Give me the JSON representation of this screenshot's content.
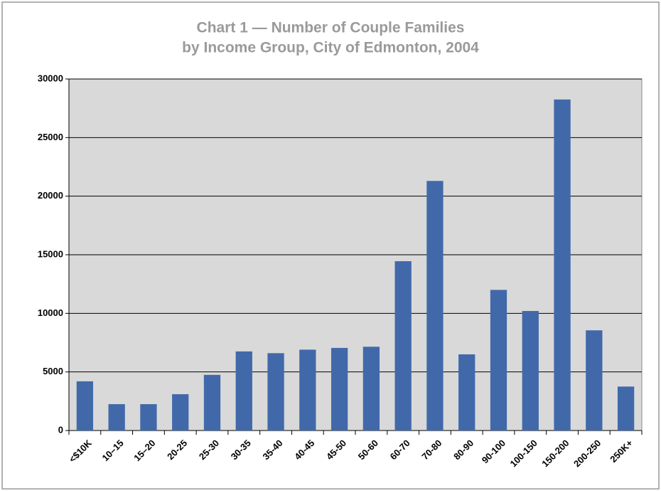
{
  "chart_data": {
    "type": "bar",
    "title": [
      "Chart 1 — Number of Couple Families",
      "by Income Group, City of Edmonton, 2004"
    ],
    "categories": [
      "<$10K",
      "10–15",
      "15–20",
      "20-25",
      "25-30",
      "30-35",
      "35-40",
      "40-45",
      "45-50",
      "50-60",
      "60-70",
      "70-80",
      "80-90",
      "90-100",
      "100-150",
      "150-200",
      "200-250",
      "250K+"
    ],
    "values": [
      4200,
      2250,
      2250,
      3100,
      4750,
      6750,
      6600,
      6900,
      7050,
      7150,
      14450,
      21300,
      6500,
      12000,
      10200,
      28250,
      8550,
      3750
    ],
    "color": "#4169aa",
    "ylim": [
      0,
      30000
    ],
    "yticks": [
      0,
      5000,
      10000,
      15000,
      20000,
      25000,
      30000
    ],
    "grid": true
  }
}
